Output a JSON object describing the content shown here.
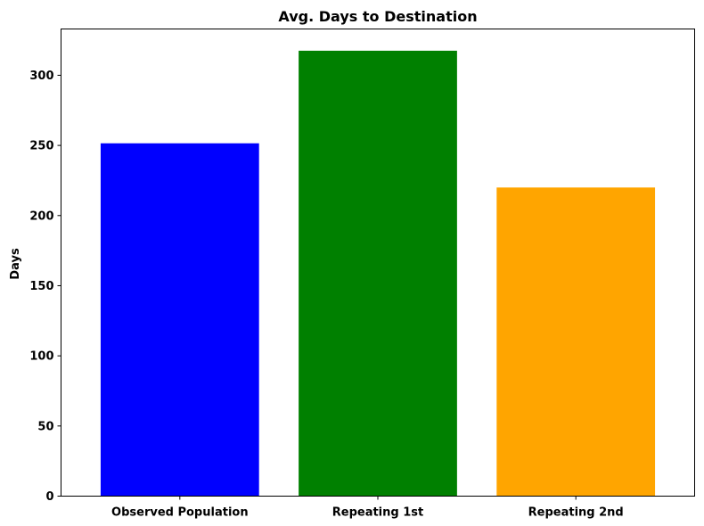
{
  "chart_data": {
    "type": "bar",
    "title": "Avg. Days to Destination",
    "xlabel": "",
    "ylabel": "Days",
    "categories": [
      "Observed Population",
      "Repeating 1st",
      "Repeating 2nd"
    ],
    "values": [
      251.5,
      317.5,
      220.0
    ],
    "colors": [
      "#0000ff",
      "#008000",
      "#ffa500"
    ],
    "ylim": [
      0,
      333
    ],
    "yticks": [
      0,
      50,
      100,
      150,
      200,
      250,
      300
    ],
    "grid": false,
    "legend": "none"
  }
}
